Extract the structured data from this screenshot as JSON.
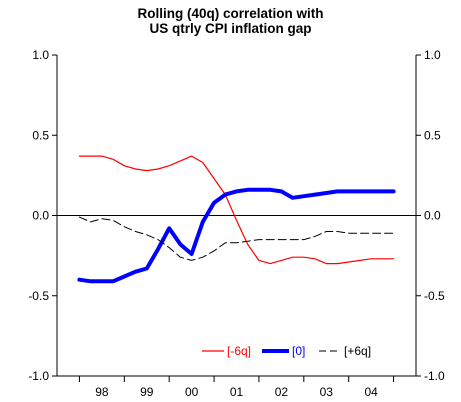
{
  "chart_data": {
    "type": "line",
    "title_lines": [
      "Rolling (40q) correlation with",
      "US qtrly CPI inflation gap"
    ],
    "xlabel": "",
    "ylabel": "",
    "ylim": [
      -1.0,
      1.0
    ],
    "y_ticks": [
      "1.0",
      "0.5",
      "0.0",
      "-0.5",
      "-1.0"
    ],
    "y_tick_values": [
      1.0,
      0.5,
      0.0,
      -0.5,
      -1.0
    ],
    "x_range": [
      1997.5,
      2005.5
    ],
    "x_tick_positions": [
      1998,
      1999,
      2000,
      2001,
      2002,
      2003,
      2004,
      2005
    ],
    "x_categories": [
      "98",
      "99",
      "00",
      "01",
      "02",
      "03",
      "04"
    ],
    "x_category_centers": [
      1998.5,
      1999.5,
      2000.5,
      2001.5,
      2002.5,
      2003.5,
      2004.5
    ],
    "grid": false,
    "zero_line": true,
    "legend_position": "bottom-right",
    "series": [
      {
        "name": "[-6q]",
        "color": "#ff0000",
        "style": "solid-thin",
        "x": [
          1998.0,
          1998.25,
          1998.5,
          1998.75,
          1999.0,
          1999.25,
          1999.5,
          1999.75,
          2000.0,
          2000.25,
          2000.5,
          2000.75,
          2001.0,
          2001.25,
          2001.5,
          2001.75,
          2002.0,
          2002.25,
          2002.5,
          2002.75,
          2003.0,
          2003.25,
          2003.5,
          2003.75,
          2004.0,
          2004.25,
          2004.5,
          2004.75,
          2005.0
        ],
        "values": [
          0.37,
          0.37,
          0.37,
          0.35,
          0.31,
          0.29,
          0.28,
          0.29,
          0.31,
          0.34,
          0.37,
          0.33,
          0.23,
          0.13,
          -0.03,
          -0.18,
          -0.28,
          -0.3,
          -0.28,
          -0.26,
          -0.26,
          -0.27,
          -0.3,
          -0.3,
          -0.29,
          -0.28,
          -0.27,
          -0.27,
          -0.27
        ]
      },
      {
        "name": "[0]",
        "color": "#0000ff",
        "style": "solid-thick",
        "x": [
          1998.0,
          1998.25,
          1998.5,
          1998.75,
          1999.0,
          1999.25,
          1999.5,
          1999.75,
          2000.0,
          2000.25,
          2000.5,
          2000.75,
          2001.0,
          2001.25,
          2001.5,
          2001.75,
          2002.0,
          2002.25,
          2002.5,
          2002.75,
          2003.0,
          2003.25,
          2003.5,
          2003.75,
          2004.0,
          2004.25,
          2004.5,
          2004.75,
          2005.0
        ],
        "values": [
          -0.4,
          -0.41,
          -0.41,
          -0.41,
          -0.38,
          -0.35,
          -0.33,
          -0.21,
          -0.08,
          -0.18,
          -0.24,
          -0.04,
          0.08,
          0.13,
          0.15,
          0.16,
          0.16,
          0.16,
          0.15,
          0.11,
          0.12,
          0.13,
          0.14,
          0.15,
          0.15,
          0.15,
          0.15,
          0.15,
          0.15
        ]
      },
      {
        "name": "[+6q]",
        "color": "#000000",
        "style": "dashed",
        "x": [
          1998.0,
          1998.25,
          1998.5,
          1998.75,
          1999.0,
          1999.25,
          1999.5,
          1999.75,
          2000.0,
          2000.25,
          2000.5,
          2000.75,
          2001.0,
          2001.25,
          2001.5,
          2001.75,
          2002.0,
          2002.25,
          2002.5,
          2002.75,
          2003.0,
          2003.25,
          2003.5,
          2003.75,
          2004.0,
          2004.25,
          2004.5,
          2004.75,
          2005.0
        ],
        "values": [
          -0.01,
          -0.04,
          -0.02,
          -0.03,
          -0.07,
          -0.1,
          -0.12,
          -0.15,
          -0.2,
          -0.26,
          -0.28,
          -0.26,
          -0.22,
          -0.17,
          -0.17,
          -0.16,
          -0.15,
          -0.15,
          -0.15,
          -0.15,
          -0.15,
          -0.13,
          -0.1,
          -0.1,
          -0.11,
          -0.11,
          -0.11,
          -0.11,
          -0.11
        ]
      }
    ],
    "legend_order": [
      "[-6q]",
      "[0]",
      "[+6q]"
    ]
  }
}
